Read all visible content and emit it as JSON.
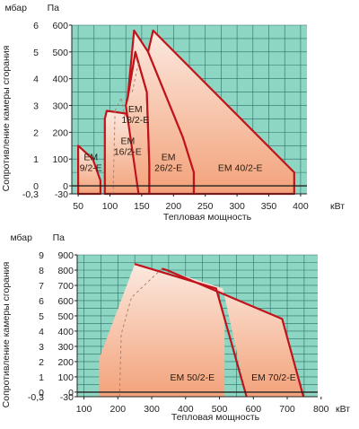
{
  "colors": {
    "plot_bg": "#8ed6c4",
    "grid": "#2f6f66",
    "region_top": "#fbe7dc",
    "region_bottom": "#f2a77c",
    "outline": "#c0141c"
  },
  "chart_data": [
    {
      "type": "area",
      "ylabel": "Сопротивление камеры сгорания",
      "xlabel": "Тепловая мощность",
      "x_unit": "кВт",
      "y_unit_left": "мбар",
      "y_unit_right": "Па",
      "xlim": [
        40,
        410
      ],
      "ylim": [
        -0.3,
        6
      ],
      "x_ticks": [
        50,
        100,
        150,
        200,
        250,
        300,
        350,
        400
      ],
      "x_tick_labels": [
        "50",
        "100",
        "150",
        "200",
        "250",
        "300",
        "350",
        "400"
      ],
      "y_ticks": [
        -0.3,
        0,
        1,
        2,
        3,
        4,
        5,
        6
      ],
      "y_tick_labels": [
        "-0,3",
        "0",
        "1",
        "2",
        "3",
        "4",
        "5",
        "6"
      ],
      "y_ticks_right_labels": [
        "-30",
        "0",
        "100",
        "200",
        "300",
        "400",
        "500",
        "600"
      ],
      "grid": true,
      "series": [
        {
          "name": "EM 9/2-E",
          "label_lines": [
            "EM",
            "9/2-E"
          ],
          "label_at": [
            70,
            0.55
          ],
          "points": [
            [
              50,
              -0.3
            ],
            [
              50,
              1.5
            ],
            [
              73,
              1
            ],
            [
              85,
              0.2
            ],
            [
              85,
              -0.3
            ]
          ]
        },
        {
          "name": "EM 16/2-E",
          "label_lines": [
            "EM",
            "16/2-E"
          ],
          "label_at": [
            128,
            1.15
          ],
          "points": [
            [
              92,
              -0.3
            ],
            [
              92,
              2.5
            ],
            [
              95,
              2.8
            ],
            [
              125,
              2.7
            ],
            [
              140,
              1.8
            ],
            [
              145,
              0.6
            ],
            [
              145,
              -0.3
            ]
          ]
        },
        {
          "name": "EM 18/2-E",
          "label_lines": [
            "EM",
            "18/2-E"
          ],
          "label_at": [
            140,
            2.35
          ],
          "points": [
            [
              125,
              3
            ],
            [
              128,
              3.3
            ],
            [
              140,
              5
            ],
            [
              158,
              3.5
            ],
            [
              162,
              0.8
            ],
            [
              162,
              -0.3
            ],
            [
              145,
              -0.3
            ]
          ]
        },
        {
          "name": "EM 26/2-E",
          "label_lines": [
            "EM",
            "26/2-E"
          ],
          "label_at": [
            192,
            0.55
          ],
          "points": [
            [
              128,
              3.3
            ],
            [
              138,
              5.8
            ],
            [
              160,
              5
            ],
            [
              215,
              1.8
            ],
            [
              232,
              0.5
            ],
            [
              232,
              -0.3
            ],
            [
              162,
              -0.3
            ],
            [
              162,
              0.8
            ],
            [
              158,
              3.5
            ],
            [
              140,
              5
            ]
          ]
        },
        {
          "name": "EM 40/2-E",
          "label_lines": [
            "EM 40/2-E"
          ],
          "label_at": [
            305,
            0.55
          ],
          "points": [
            [
              160,
              5
            ],
            [
              168,
              5.8
            ],
            [
              390,
              0.5
            ],
            [
              390,
              -0.3
            ],
            [
              232,
              -0.3
            ],
            [
              232,
              0.5
            ],
            [
              215,
              1.8
            ]
          ]
        }
      ],
      "dashed": [
        [
          [
            108,
            2.8
          ],
          [
            118,
            3.3
          ],
          [
            123,
            2.6
          ]
        ],
        [
          [
            108,
            2.8
          ],
          [
            105,
            -0.3
          ]
        ],
        [
          [
            135,
            3.5
          ],
          [
            145,
            4.6
          ]
        ]
      ]
    },
    {
      "type": "area",
      "ylabel": "Сопротивление камеры сгорания",
      "xlabel": "Тепловая мощность",
      "x_unit": "кВт",
      "y_unit_left": "мбар",
      "y_unit_right": "Па",
      "xlim": [
        80,
        790
      ],
      "ylim": [
        -0.3,
        9
      ],
      "x_ticks": [
        100,
        200,
        300,
        400,
        500,
        600,
        700,
        800
      ],
      "x_tick_labels": [
        "100",
        "200",
        "300",
        "400",
        "500",
        "600",
        "700",
        "800"
      ],
      "y_ticks": [
        -0.3,
        0,
        1,
        2,
        3,
        4,
        5,
        6,
        7,
        8,
        9
      ],
      "y_tick_labels": [
        "-0,3",
        "0",
        "1",
        "2",
        "3",
        "4",
        "5",
        "6",
        "7",
        "8",
        "9"
      ],
      "y_ticks_right_labels": [
        "-30",
        "0",
        "100",
        "200",
        "300",
        "400",
        "500",
        "600",
        "700",
        "800",
        "900"
      ],
      "grid": true,
      "series": [
        {
          "name": "EM 50/2-E",
          "label_lines": [
            "EM 50/2-E"
          ],
          "label_at": [
            420,
            0.75
          ],
          "points": [
            [
              145,
              -0.3
            ],
            [
              145,
              2.2
            ],
            [
              250,
              8.4
            ],
            [
              490,
              6.8
            ],
            [
              515,
              5
            ],
            [
              515,
              -0.3
            ]
          ]
        },
        {
          "name": "EM 70/2-E",
          "label_lines": [
            "EM 70/2-E"
          ],
          "label_at": [
            660,
            0.75
          ],
          "points": [
            [
              330,
              8.1
            ],
            [
              345,
              8
            ],
            [
              685,
              4.8
            ],
            [
              748,
              -0.3
            ],
            [
              580,
              -0.3
            ],
            [
              510,
              6.8
            ],
            [
              330,
              8.1
            ]
          ]
        }
      ],
      "outline_segments": [
        [
          [
            250,
            8.4
          ],
          [
            490,
            6.8
          ],
          [
            580,
            -0.3
          ]
        ],
        [
          [
            330,
            8.1
          ],
          [
            345,
            8
          ],
          [
            685,
            4.8
          ],
          [
            748,
            -0.3
          ]
        ]
      ],
      "dashed": [
        [
          [
            205,
            -0.3
          ],
          [
            210,
            3.8
          ],
          [
            240,
            6.2
          ],
          [
            330,
            8.1
          ]
        ]
      ]
    }
  ]
}
